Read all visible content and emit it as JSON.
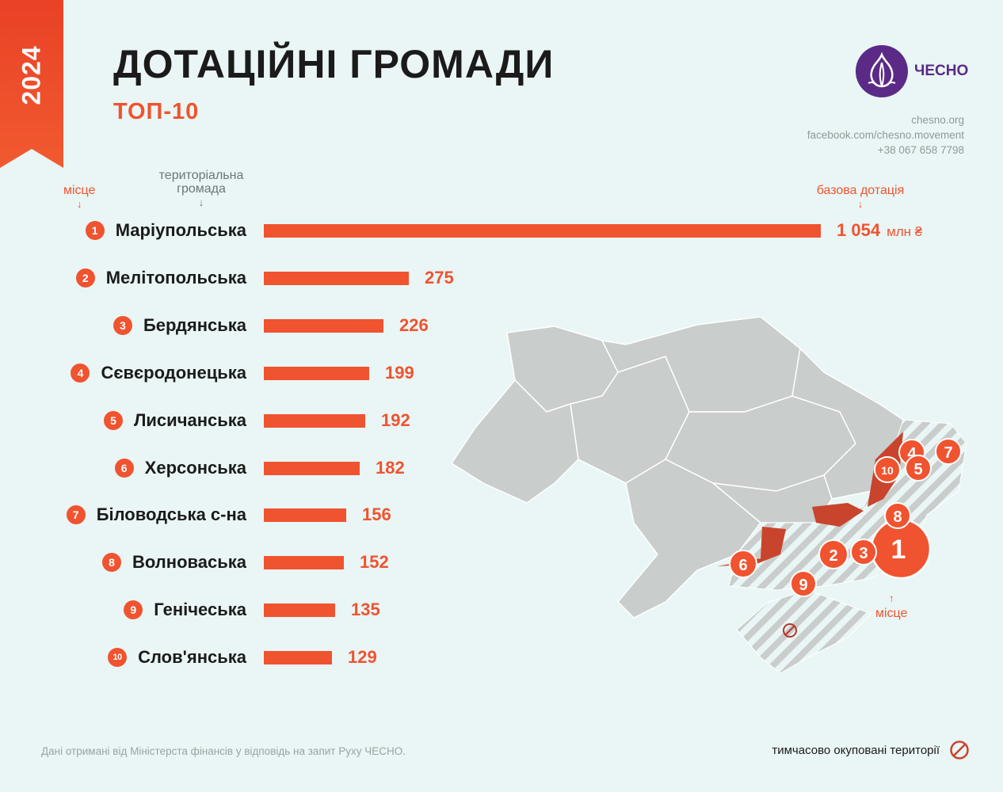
{
  "header": {
    "year": "2024",
    "title": "ДОТАЦІЙНІ ГРОМАДИ",
    "subtitle": "ТОП-10"
  },
  "brand": {
    "name": "ЧЕСНО",
    "icon": "garlic-logo-icon",
    "site": "chesno.org",
    "facebook": "facebook.com/chesno.movement",
    "phone": "+38 067 658 7798"
  },
  "columns": {
    "place": "місце",
    "community": "територіальна громада",
    "subsidy": "базова дотація",
    "arrow": "↓"
  },
  "colors": {
    "accent": "#f0532f",
    "highlight_region": "#c8442c",
    "map_region": "#c9cdcb",
    "hatched_region": "#d2d5d3",
    "logo": "#5b2a86",
    "background": "#e9f6f5"
  },
  "chart_data": {
    "type": "bar",
    "orientation": "horizontal",
    "title": "ДОТАЦІЙНІ ГРОМАДИ",
    "subtitle": "ТОП-10",
    "value_unit": "млн ₴",
    "categories": [
      "Маріупольська",
      "Мелітопольська",
      "Бердянська",
      "Сєвєродонецька",
      "Лисичанська",
      "Херсонська",
      "Біловодська с-на",
      "Волноваська",
      "Генічеська",
      "Слов'янська"
    ],
    "ranks": [
      1,
      2,
      3,
      4,
      5,
      6,
      7,
      8,
      9,
      10
    ],
    "values": [
      1054,
      275,
      226,
      199,
      192,
      182,
      156,
      152,
      135,
      129
    ],
    "value_labels": [
      "1 054",
      "275",
      "226",
      "199",
      "192",
      "182",
      "156",
      "152",
      "135",
      "129"
    ],
    "xlim": [
      0,
      1054
    ],
    "grid": false,
    "legend": "none"
  },
  "map": {
    "markers": [
      "1",
      "2",
      "3",
      "4",
      "5",
      "6",
      "7",
      "8",
      "9",
      "10"
    ],
    "marker_label": "місце",
    "legend_label": "тимчасово окуповані території",
    "legend_icon": "prohibited-icon"
  },
  "footer": {
    "source": "Дані отримані від Міністерста фінансів у відповідь на запит Руху ЧЕСНО."
  }
}
